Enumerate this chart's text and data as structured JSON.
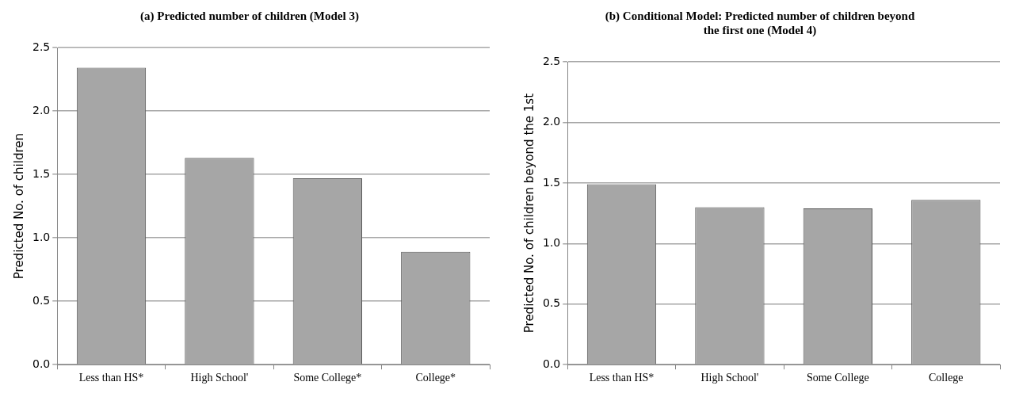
{
  "chart_data": [
    {
      "type": "bar",
      "title": "(a) Predicted number of children (Model 3)",
      "ylabel": "Predicted No. of children",
      "categories": [
        "Less than HS*",
        "High School'",
        "Some College*",
        "College*"
      ],
      "values": [
        2.34,
        1.63,
        1.47,
        0.89
      ],
      "color": "#a6a6a6",
      "ylim": [
        0,
        2.5
      ],
      "yticks": [
        {
          "value": 0,
          "label": "0.0"
        },
        {
          "value": 0.5,
          "label": "0.5"
        },
        {
          "value": 1,
          "label": "1.0"
        },
        {
          "value": 1.5,
          "label": "1.5"
        },
        {
          "value": 2,
          "label": "2.0"
        },
        {
          "value": 2.5,
          "label": "2.5"
        }
      ],
      "grid": "y",
      "legend": false
    },
    {
      "type": "bar",
      "title": "(b) Conditional Model: Predicted number of children beyond the first one (Model 4)",
      "ylabel": "Predicted No. of children beyond the 1st",
      "categories": [
        "Less than HS*",
        "High School'",
        "Some College",
        "College"
      ],
      "values": [
        1.49,
        1.3,
        1.29,
        1.36
      ],
      "color": "#a6a6a6",
      "ylim": [
        0,
        2.5
      ],
      "yticks": [
        {
          "value": 0,
          "label": "0.0"
        },
        {
          "value": 0.5,
          "label": "0.5"
        },
        {
          "value": 1,
          "label": "1.0"
        },
        {
          "value": 1.5,
          "label": "1.5"
        },
        {
          "value": 2,
          "label": "2.0"
        },
        {
          "value": 2.5,
          "label": "2.5"
        }
      ],
      "grid": "y",
      "legend": false
    }
  ]
}
